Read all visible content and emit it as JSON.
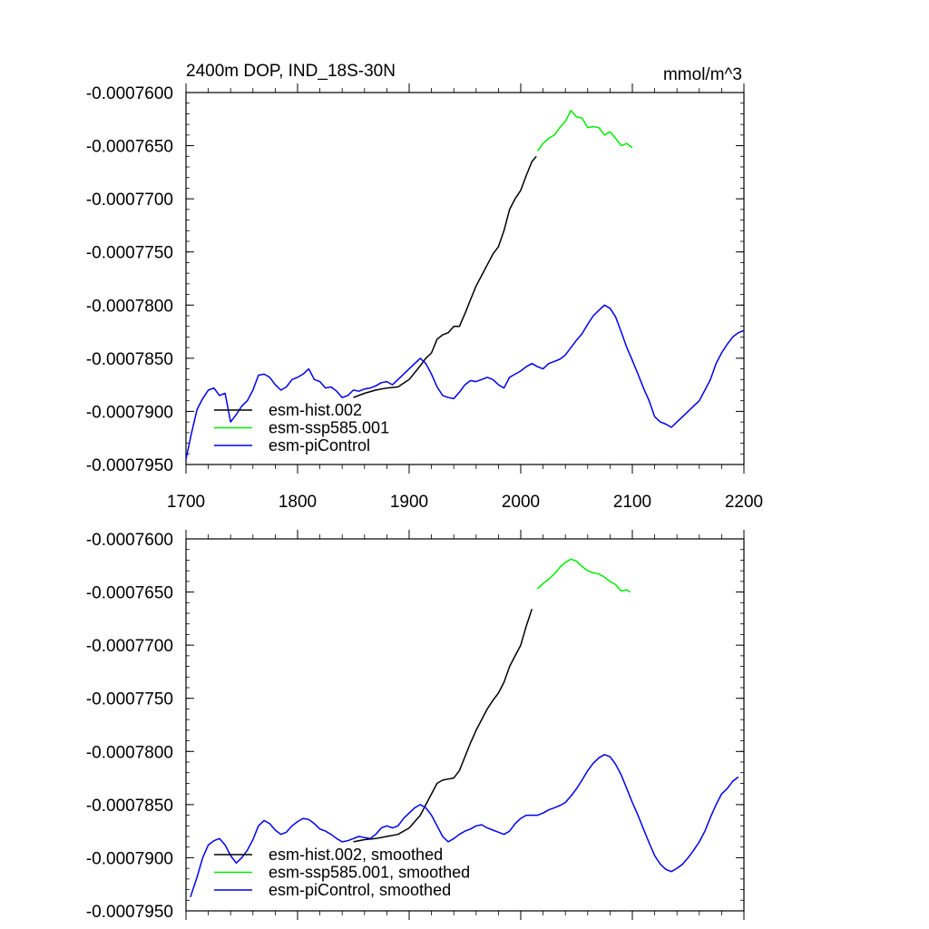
{
  "chart_data": [
    {
      "type": "line",
      "title": "2400m DOP, IND_18S-30N",
      "units": "mmol/m^3",
      "xlim": [
        1700,
        2200
      ],
      "ylim": [
        -0.000795,
        -0.00076
      ],
      "xticks": [
        1700,
        1800,
        1900,
        2000,
        2100,
        2200
      ],
      "xtick_labels": [
        "1700",
        "1800",
        "1900",
        "2000",
        "2100",
        "2200"
      ],
      "yticks": [
        -0.00076,
        -0.000765,
        -0.00077,
        -0.000775,
        -0.00078,
        -0.000785,
        -0.00079,
        -0.000795
      ],
      "ytick_labels": [
        "-0.0007600",
        "-0.0007650",
        "-0.0007700",
        "-0.0007750",
        "-0.0007800",
        "-0.0007850",
        "-0.0007900",
        "-0.0007950"
      ],
      "legend": [
        "esm-hist.002",
        "esm-ssp585.001",
        "esm-piControl"
      ],
      "series": [
        {
          "name": "esm-hist.002",
          "color": "#000000",
          "x": [
            1850,
            1860,
            1870,
            1880,
            1890,
            1900,
            1910,
            1915,
            1920,
            1925,
            1930,
            1935,
            1940,
            1945,
            1950,
            1955,
            1960,
            1965,
            1970,
            1975,
            1980,
            1985,
            1990,
            1995,
            2000,
            2005,
            2010,
            2014
          ],
          "y": [
            -0.0007887,
            -0.0007883,
            -0.000788,
            -0.0007878,
            -0.0007877,
            -0.000787,
            -0.0007857,
            -0.000785,
            -0.0007845,
            -0.0007832,
            -0.0007828,
            -0.0007826,
            -0.000782,
            -0.000782,
            -0.0007808,
            -0.0007795,
            -0.0007782,
            -0.0007772,
            -0.0007762,
            -0.0007752,
            -0.0007745,
            -0.000773,
            -0.000771,
            -0.00077,
            -0.0007692,
            -0.0007678,
            -0.0007665,
            -0.000766
          ]
        },
        {
          "name": "esm-ssp585.001",
          "color": "#00ee00",
          "x": [
            2015,
            2020,
            2025,
            2030,
            2035,
            2040,
            2045,
            2050,
            2055,
            2060,
            2065,
            2070,
            2075,
            2080,
            2085,
            2090,
            2095,
            2100
          ],
          "y": [
            -0.0007655,
            -0.0007648,
            -0.0007643,
            -0.000764,
            -0.0007633,
            -0.0007627,
            -0.0007617,
            -0.0007623,
            -0.0007624,
            -0.0007633,
            -0.0007632,
            -0.0007633,
            -0.000764,
            -0.0007637,
            -0.0007643,
            -0.000765,
            -0.0007648,
            -0.0007652
          ]
        },
        {
          "name": "esm-piControl",
          "color": "#0000ee",
          "x": [
            1700,
            1705,
            1710,
            1715,
            1720,
            1725,
            1730,
            1735,
            1740,
            1745,
            1750,
            1755,
            1760,
            1765,
            1770,
            1775,
            1780,
            1785,
            1790,
            1795,
            1800,
            1805,
            1810,
            1815,
            1820,
            1825,
            1830,
            1835,
            1840,
            1845,
            1850,
            1855,
            1860,
            1865,
            1870,
            1875,
            1880,
            1885,
            1890,
            1895,
            1900,
            1905,
            1910,
            1915,
            1920,
            1925,
            1930,
            1935,
            1940,
            1945,
            1950,
            1955,
            1960,
            1965,
            1970,
            1975,
            1980,
            1985,
            1990,
            1995,
            2000,
            2005,
            2010,
            2015,
            2020,
            2025,
            2030,
            2035,
            2040,
            2045,
            2050,
            2055,
            2060,
            2065,
            2070,
            2075,
            2080,
            2085,
            2090,
            2095,
            2100,
            2105,
            2110,
            2115,
            2120,
            2125,
            2130,
            2135,
            2140,
            2145,
            2150,
            2155,
            2160,
            2165,
            2170,
            2175,
            2180,
            2185,
            2190,
            2195,
            2200
          ],
          "y": [
            -0.0007945,
            -0.000792,
            -0.0007898,
            -0.0007888,
            -0.000788,
            -0.0007878,
            -0.0007885,
            -0.0007883,
            -0.000791,
            -0.0007903,
            -0.0007895,
            -0.000789,
            -0.000788,
            -0.0007866,
            -0.0007865,
            -0.0007868,
            -0.0007875,
            -0.000788,
            -0.0007877,
            -0.000787,
            -0.0007868,
            -0.0007865,
            -0.000786,
            -0.000787,
            -0.0007872,
            -0.0007878,
            -0.0007877,
            -0.0007881,
            -0.0007887,
            -0.0007885,
            -0.000788,
            -0.0007881,
            -0.0007879,
            -0.0007878,
            -0.0007876,
            -0.0007873,
            -0.0007872,
            -0.0007875,
            -0.000787,
            -0.0007865,
            -0.000786,
            -0.0007855,
            -0.000785,
            -0.0007855,
            -0.0007865,
            -0.0007877,
            -0.0007885,
            -0.0007887,
            -0.0007888,
            -0.0007882,
            -0.0007875,
            -0.0007871,
            -0.0007872,
            -0.000787,
            -0.0007868,
            -0.000787,
            -0.0007875,
            -0.0007878,
            -0.0007868,
            -0.0007865,
            -0.0007862,
            -0.0007858,
            -0.0007855,
            -0.0007858,
            -0.000786,
            -0.0007855,
            -0.0007853,
            -0.0007851,
            -0.0007847,
            -0.000784,
            -0.0007833,
            -0.0007827,
            -0.0007818,
            -0.000781,
            -0.0007805,
            -0.00078,
            -0.0007803,
            -0.0007811,
            -0.0007825,
            -0.000784,
            -0.0007852,
            -0.0007865,
            -0.0007878,
            -0.000789,
            -0.0007905,
            -0.000791,
            -0.0007912,
            -0.0007915,
            -0.000791,
            -0.0007905,
            -0.00079,
            -0.0007895,
            -0.000789,
            -0.000788,
            -0.000787,
            -0.0007855,
            -0.0007845,
            -0.0007837,
            -0.000783,
            -0.0007826,
            -0.0007824
          ]
        }
      ]
    },
    {
      "type": "line",
      "title": "",
      "xlim": [
        1700,
        2200
      ],
      "ylim": [
        -0.000795,
        -0.00076
      ],
      "xticks": [
        1700,
        1800,
        1900,
        2000,
        2100,
        2200
      ],
      "yticks": [
        -0.00076,
        -0.000765,
        -0.00077,
        -0.000775,
        -0.00078,
        -0.000785,
        -0.00079,
        -0.000795
      ],
      "ytick_labels": [
        "-0.0007600",
        "-0.0007650",
        "-0.0007700",
        "-0.0007750",
        "-0.0007800",
        "-0.0007850",
        "-0.0007900",
        "-0.0007950"
      ],
      "legend": [
        "esm-hist.002, smoothed",
        "esm-ssp585.001, smoothed",
        "esm-piControl, smoothed"
      ],
      "series": [
        {
          "name": "esm-hist.002, smoothed",
          "color": "#000000",
          "x": [
            1850,
            1860,
            1870,
            1880,
            1890,
            1900,
            1910,
            1915,
            1920,
            1925,
            1930,
            1935,
            1940,
            1945,
            1950,
            1955,
            1960,
            1965,
            1970,
            1975,
            1980,
            1985,
            1990,
            1995,
            2000,
            2005,
            2010
          ],
          "y": [
            -0.0007885,
            -0.0007883,
            -0.0007882,
            -0.000788,
            -0.0007878,
            -0.0007872,
            -0.000786,
            -0.000785,
            -0.000784,
            -0.000783,
            -0.0007827,
            -0.0007826,
            -0.0007825,
            -0.0007818,
            -0.0007805,
            -0.0007792,
            -0.000778,
            -0.000777,
            -0.000776,
            -0.0007752,
            -0.0007745,
            -0.0007735,
            -0.000772,
            -0.000771,
            -0.00077,
            -0.0007682,
            -0.0007666
          ]
        },
        {
          "name": "esm-ssp585.001, smoothed",
          "color": "#00ee00",
          "x": [
            2015,
            2020,
            2025,
            2030,
            2035,
            2040,
            2045,
            2050,
            2055,
            2060,
            2065,
            2070,
            2075,
            2080,
            2085,
            2090,
            2095,
            2098
          ],
          "y": [
            -0.0007647,
            -0.0007642,
            -0.0007638,
            -0.0007633,
            -0.0007627,
            -0.0007622,
            -0.0007619,
            -0.0007621,
            -0.0007626,
            -0.000763,
            -0.0007632,
            -0.0007633,
            -0.0007636,
            -0.000764,
            -0.0007643,
            -0.0007649,
            -0.0007648,
            -0.000765
          ]
        },
        {
          "name": "esm-piControl, smoothed",
          "color": "#0000ee",
          "x": [
            1704,
            1710,
            1715,
            1720,
            1725,
            1730,
            1735,
            1740,
            1745,
            1750,
            1755,
            1760,
            1765,
            1770,
            1775,
            1780,
            1785,
            1790,
            1795,
            1800,
            1805,
            1810,
            1815,
            1820,
            1825,
            1830,
            1835,
            1840,
            1845,
            1850,
            1855,
            1860,
            1865,
            1870,
            1875,
            1880,
            1885,
            1890,
            1895,
            1900,
            1905,
            1910,
            1915,
            1920,
            1925,
            1930,
            1935,
            1940,
            1945,
            1950,
            1955,
            1960,
            1965,
            1970,
            1975,
            1980,
            1985,
            1990,
            1995,
            2000,
            2005,
            2010,
            2015,
            2020,
            2025,
            2030,
            2035,
            2040,
            2045,
            2050,
            2055,
            2060,
            2065,
            2070,
            2075,
            2080,
            2085,
            2090,
            2095,
            2100,
            2105,
            2110,
            2115,
            2120,
            2125,
            2130,
            2135,
            2140,
            2145,
            2150,
            2155,
            2160,
            2165,
            2170,
            2175,
            2180,
            2185,
            2190,
            2195
          ],
          "y": [
            -0.0007937,
            -0.0007918,
            -0.00079,
            -0.0007888,
            -0.0007884,
            -0.0007882,
            -0.0007888,
            -0.0007898,
            -0.0007905,
            -0.00079,
            -0.0007893,
            -0.0007883,
            -0.000787,
            -0.0007865,
            -0.0007868,
            -0.0007874,
            -0.0007878,
            -0.0007876,
            -0.000787,
            -0.0007866,
            -0.0007863,
            -0.0007864,
            -0.0007868,
            -0.0007873,
            -0.0007875,
            -0.0007878,
            -0.0007882,
            -0.0007885,
            -0.0007884,
            -0.0007882,
            -0.000788,
            -0.0007881,
            -0.0007882,
            -0.0007878,
            -0.0007872,
            -0.000787,
            -0.0007872,
            -0.000787,
            -0.0007863,
            -0.0007858,
            -0.0007853,
            -0.000785,
            -0.0007853,
            -0.000786,
            -0.000787,
            -0.000788,
            -0.0007885,
            -0.0007882,
            -0.0007878,
            -0.0007875,
            -0.0007873,
            -0.000787,
            -0.0007869,
            -0.0007872,
            -0.0007874,
            -0.0007876,
            -0.0007878,
            -0.0007875,
            -0.0007868,
            -0.0007863,
            -0.000786,
            -0.000786,
            -0.000786,
            -0.0007858,
            -0.0007855,
            -0.0007853,
            -0.0007851,
            -0.0007848,
            -0.0007842,
            -0.0007835,
            -0.0007827,
            -0.0007818,
            -0.0007811,
            -0.0007806,
            -0.0007803,
            -0.0007805,
            -0.0007812,
            -0.0007822,
            -0.0007835,
            -0.0007848,
            -0.000786,
            -0.0007873,
            -0.0007886,
            -0.0007898,
            -0.0007906,
            -0.0007911,
            -0.0007913,
            -0.000791,
            -0.0007906,
            -0.00079,
            -0.0007893,
            -0.0007885,
            -0.0007875,
            -0.0007862,
            -0.000785,
            -0.000784,
            -0.0007835,
            -0.0007828,
            -0.0007824
          ]
        }
      ]
    }
  ]
}
